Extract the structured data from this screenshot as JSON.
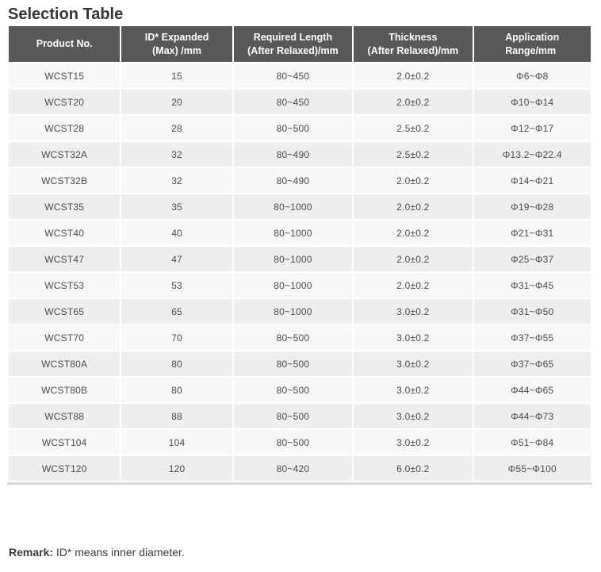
{
  "page": {
    "title": "Selection Table"
  },
  "colors": {
    "header_bg": "#595757",
    "header_text": "#ffffff",
    "row_odd_bg": "#f7f7f7",
    "row_even_bg": "#eeeeee",
    "title_text": "#383434",
    "cell_text": "#4a4a4a",
    "table_bottom_border": "#d9d9d9"
  },
  "table": {
    "columns": [
      {
        "key": "product-no",
        "lines": [
          "Product No."
        ]
      },
      {
        "key": "id-expanded",
        "lines": [
          "ID* Expanded",
          "(Max) /mm"
        ]
      },
      {
        "key": "required-length",
        "lines": [
          "Required Length",
          "(After Relaxed)/mm"
        ]
      },
      {
        "key": "thickness",
        "lines": [
          "Thickness",
          "(After Relaxed)/mm"
        ]
      },
      {
        "key": "application-range",
        "lines": [
          "Application",
          "Range/mm"
        ],
        "align": "left-block"
      }
    ],
    "rows": [
      [
        "WCST15",
        "15",
        "80~450",
        "2.0±0.2",
        "Φ6~Φ8"
      ],
      [
        "WCST20",
        "20",
        "80~450",
        "2.0±0.2",
        "Φ10~Φ14"
      ],
      [
        "WCST28",
        "28",
        "80~500",
        "2.5±0.2",
        "Φ12~Φ17"
      ],
      [
        "WCST32A",
        "32",
        "80~490",
        "2.5±0.2",
        "Φ13.2~Φ22.4"
      ],
      [
        "WCST32B",
        "32",
        "80~490",
        "2.0±0.2",
        "Φ14~Φ21"
      ],
      [
        "WCST35",
        "35",
        "80~1000",
        "2.0±0.2",
        "Φ19~Φ28"
      ],
      [
        "WCST40",
        "40",
        "80~1000",
        "2.0±0.2",
        "Φ21~Φ31"
      ],
      [
        "WCST47",
        "47",
        "80~1000",
        "2.0±0.2",
        "Φ25~Φ37"
      ],
      [
        "WCST53",
        "53",
        "80~1000",
        "2.0±0.2",
        "Φ31~Φ45"
      ],
      [
        "WCST65",
        "65",
        "80~1000",
        "3.0±0.2",
        "Φ31~Φ50"
      ],
      [
        "WCST70",
        "70",
        "80~500",
        "3.0±0.2",
        "Φ37~Φ55"
      ],
      [
        "WCST80A",
        "80",
        "80~500",
        "3.0±0.2",
        "Φ37~Φ65"
      ],
      [
        "WCST80B",
        "80",
        "80~500",
        "3.0±0.2",
        "Φ44~Φ65"
      ],
      [
        "WCST88",
        "88",
        "80~500",
        "3.0±0.2",
        "Φ44~Φ73"
      ],
      [
        "WCST104",
        "104",
        "80~500",
        "3.0±0.2",
        "Φ51~Φ84"
      ],
      [
        "WCST120",
        "120",
        "80~420",
        "6.0±0.2",
        "Φ55~Φ100"
      ]
    ]
  },
  "remark": {
    "label": "Remark:",
    "text": " ID* means inner diameter."
  }
}
